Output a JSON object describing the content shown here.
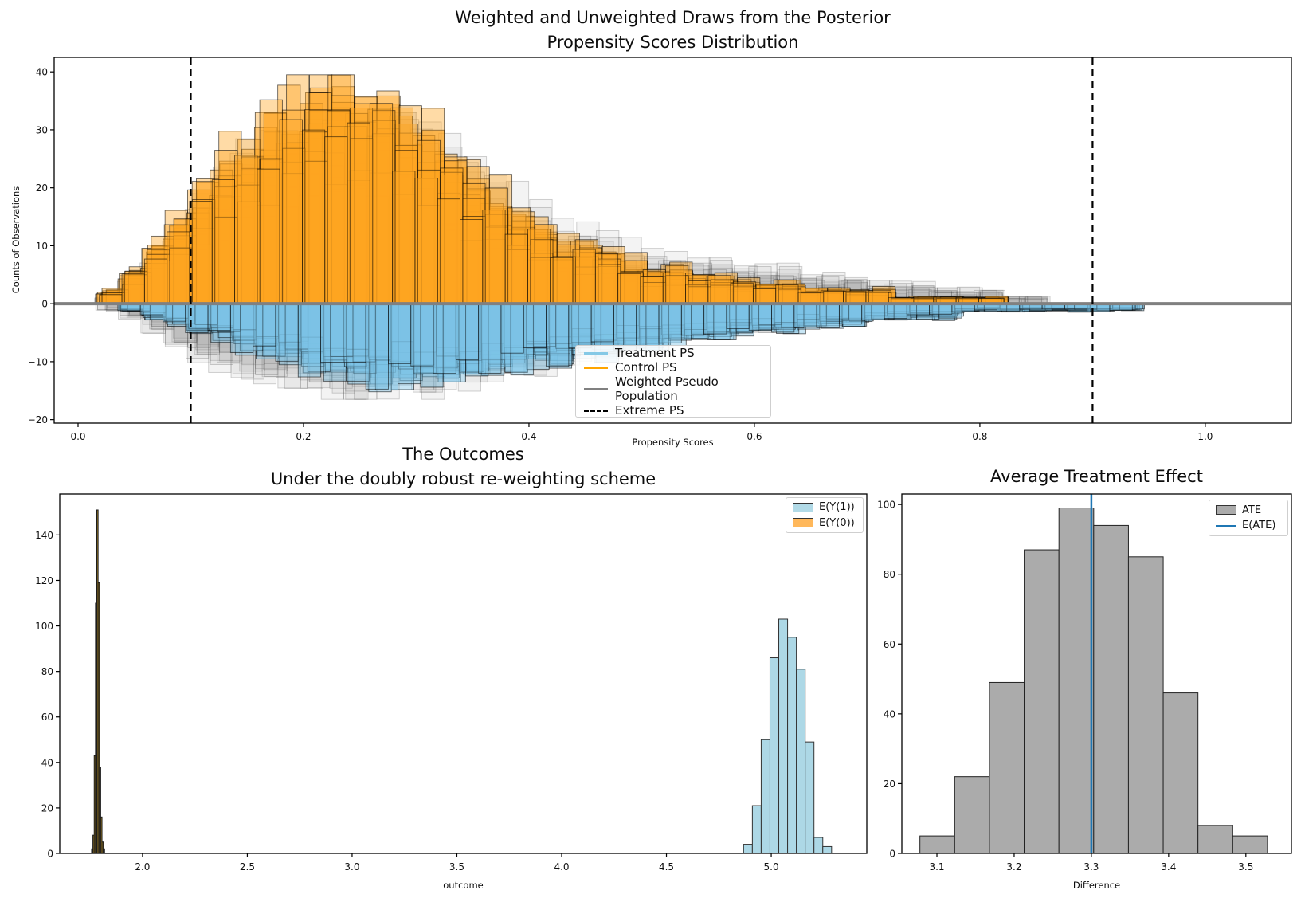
{
  "figure": {
    "background": "#ffffff",
    "suptitle_lines": [
      "Weighted and Unweighted Draws from the Posterior",
      "Propensity Scores Distribution"
    ]
  },
  "panels": {
    "propensity": {
      "xlabel": "Propensity Scores",
      "ylabel": "Counts of Observations",
      "legend": [
        {
          "label": "Treatment PS",
          "color": "#85C9E6",
          "style": "solid"
        },
        {
          "label": "Control PS",
          "color": "#FFA500",
          "style": "solid"
        },
        {
          "label": "Weighted Pseudo Population",
          "color": "#808080",
          "style": "solid"
        },
        {
          "label": "Extreme PS",
          "color": "#000000",
          "style": "dashed"
        }
      ]
    },
    "outcomes": {
      "title_lines": [
        "The Outcomes",
        "Under the doubly robust re-weighting scheme"
      ],
      "xlabel": "outcome",
      "legend": [
        {
          "label": "E(Y(1))",
          "color": "rgba(173,216,230,0.95)"
        },
        {
          "label": "E(Y(0))",
          "color": "rgba(255,166,50,0.8)"
        }
      ]
    },
    "ate": {
      "title_lines": [
        "Average Treatment Effect"
      ],
      "xlabel": "Difference",
      "legend": [
        {
          "label": "ATE",
          "color": "#ABABAB",
          "style": "patch"
        },
        {
          "label": "E(ATE)",
          "color": "#1f77b4",
          "style": "line"
        }
      ]
    }
  },
  "chart_data": [
    {
      "id": "propensity",
      "type": "histogram-ensemble",
      "title": "Weighted and Unweighted Draws from the Posterior — Propensity Scores Distribution",
      "xlabel": "Propensity Scores",
      "ylabel": "Counts of Observations",
      "xlim": [
        -0.0212,
        1.0764
      ],
      "ylim": [
        -20.6,
        42.5
      ],
      "xticks": [
        0.0,
        0.2,
        0.4,
        0.6,
        0.8,
        1.0
      ],
      "yticks": [
        -20,
        -10,
        0,
        10,
        20,
        30,
        40
      ],
      "bin_start": 0.02,
      "bin_width": 0.02,
      "n_posterior_draws": 16,
      "extreme_ps_lines": [
        0.1,
        0.9
      ],
      "zero_line": {
        "y": 0,
        "color": "#808080",
        "width": 4
      },
      "series": [
        {
          "name": "Weighted Pseudo Population (control side)",
          "orientation": "up",
          "fill": "#A0A0A0",
          "fill_alpha": 0.13,
          "stroke": "rgba(60,60,60,0.25)",
          "draws": 9,
          "cap": 33,
          "counts": [
            1,
            3,
            6,
            10,
            14,
            17,
            20,
            23,
            25,
            27,
            28,
            28,
            27,
            25,
            23,
            21,
            19,
            17,
            15,
            13,
            11,
            10,
            9,
            8,
            7,
            7,
            6,
            6,
            5,
            5,
            5,
            4,
            4,
            4,
            3,
            3,
            3,
            2,
            2,
            2,
            1,
            1,
            0,
            0,
            0,
            0
          ]
        },
        {
          "name": "Weighted Pseudo Population (treatment side)",
          "orientation": "down",
          "fill": "#A0A0A0",
          "fill_alpha": 0.13,
          "stroke": "rgba(60,60,60,0.25)",
          "draws": 9,
          "cap": 16.5,
          "counts": [
            1,
            2,
            4,
            6,
            8,
            9,
            10,
            11,
            12,
            12,
            13,
            13,
            13,
            12,
            12,
            11,
            11,
            10,
            9,
            9,
            8,
            7,
            7,
            6,
            6,
            5,
            5,
            4,
            4,
            4,
            3,
            3,
            3,
            2,
            2,
            2,
            2,
            1,
            1,
            1,
            1,
            1,
            0,
            0,
            0,
            0
          ]
        },
        {
          "name": "Control PS",
          "orientation": "up",
          "fill": "#FFA620",
          "fill_alpha": 0.4,
          "stroke": "rgba(0,0,0,0.6)",
          "draws": 16,
          "cap": 39.5,
          "counts": [
            2,
            5,
            9,
            13,
            17,
            20,
            23,
            26,
            29,
            31,
            32,
            31,
            29,
            27,
            24,
            21,
            18,
            15,
            13,
            11,
            9,
            8,
            7,
            6,
            5,
            5,
            4,
            4,
            3,
            3,
            3,
            2,
            2,
            2,
            2,
            1,
            1,
            1,
            1,
            1,
            0,
            0,
            0,
            0,
            0,
            0
          ]
        },
        {
          "name": "Treatment PS",
          "orientation": "down",
          "fill": "#7CC4E8",
          "fill_alpha": 0.42,
          "stroke": "rgba(0,0,0,0.6)",
          "draws": 16,
          "cap": 15.8,
          "counts": [
            0,
            1,
            2,
            3,
            4,
            5,
            6,
            7,
            8,
            9,
            10,
            11,
            11,
            11,
            11,
            10,
            10,
            9,
            9,
            8,
            8,
            7,
            7,
            6,
            6,
            5,
            5,
            5,
            4,
            4,
            4,
            3,
            3,
            3,
            2,
            2,
            2,
            2,
            1,
            1,
            1,
            1,
            1,
            1,
            1,
            1
          ]
        }
      ]
    },
    {
      "id": "outcomes",
      "type": "histogram",
      "title": "The Outcomes — Under the doubly robust re-weighting scheme",
      "xlabel": "outcome",
      "xlim": [
        1.605,
        5.456
      ],
      "ylim": [
        0,
        158
      ],
      "xticks": [
        2.0,
        2.5,
        3.0,
        3.5,
        4.0,
        4.5,
        5.0
      ],
      "yticks": [
        0,
        20,
        40,
        60,
        80,
        100,
        120,
        140
      ],
      "series": [
        {
          "name": "E(Y(0))",
          "bin_start": 1.757,
          "bin_width": 0.0062,
          "counts": [
            2,
            8,
            43,
            110,
            151,
            119,
            38,
            16,
            5,
            2
          ],
          "fill": "#96751f",
          "stroke": "#1c1c1c"
        },
        {
          "name": "E(Y(1))",
          "bin_start": 4.868,
          "bin_width": 0.042,
          "counts": [
            4,
            21,
            50,
            86,
            103,
            95,
            81,
            49,
            7,
            3
          ],
          "fill": "#ADD8E6",
          "stroke": "#333333"
        }
      ]
    },
    {
      "id": "ate",
      "type": "histogram",
      "title": "Average Treatment Effect",
      "xlabel": "Difference",
      "xlim": [
        3.0546,
        3.559
      ],
      "ylim": [
        0,
        103
      ],
      "xticks": [
        3.1,
        3.2,
        3.3,
        3.4,
        3.5
      ],
      "yticks": [
        0,
        20,
        40,
        60,
        80,
        100
      ],
      "series": [
        {
          "name": "ATE",
          "bin_start": 3.078,
          "bin_width": 0.045,
          "counts": [
            5,
            22,
            49,
            87,
            99,
            94,
            85,
            46,
            8,
            5
          ],
          "fill": "#ABABAB",
          "stroke": "#222222"
        }
      ],
      "eate_line": {
        "value": 3.3,
        "color": "#1f77b4"
      }
    }
  ]
}
